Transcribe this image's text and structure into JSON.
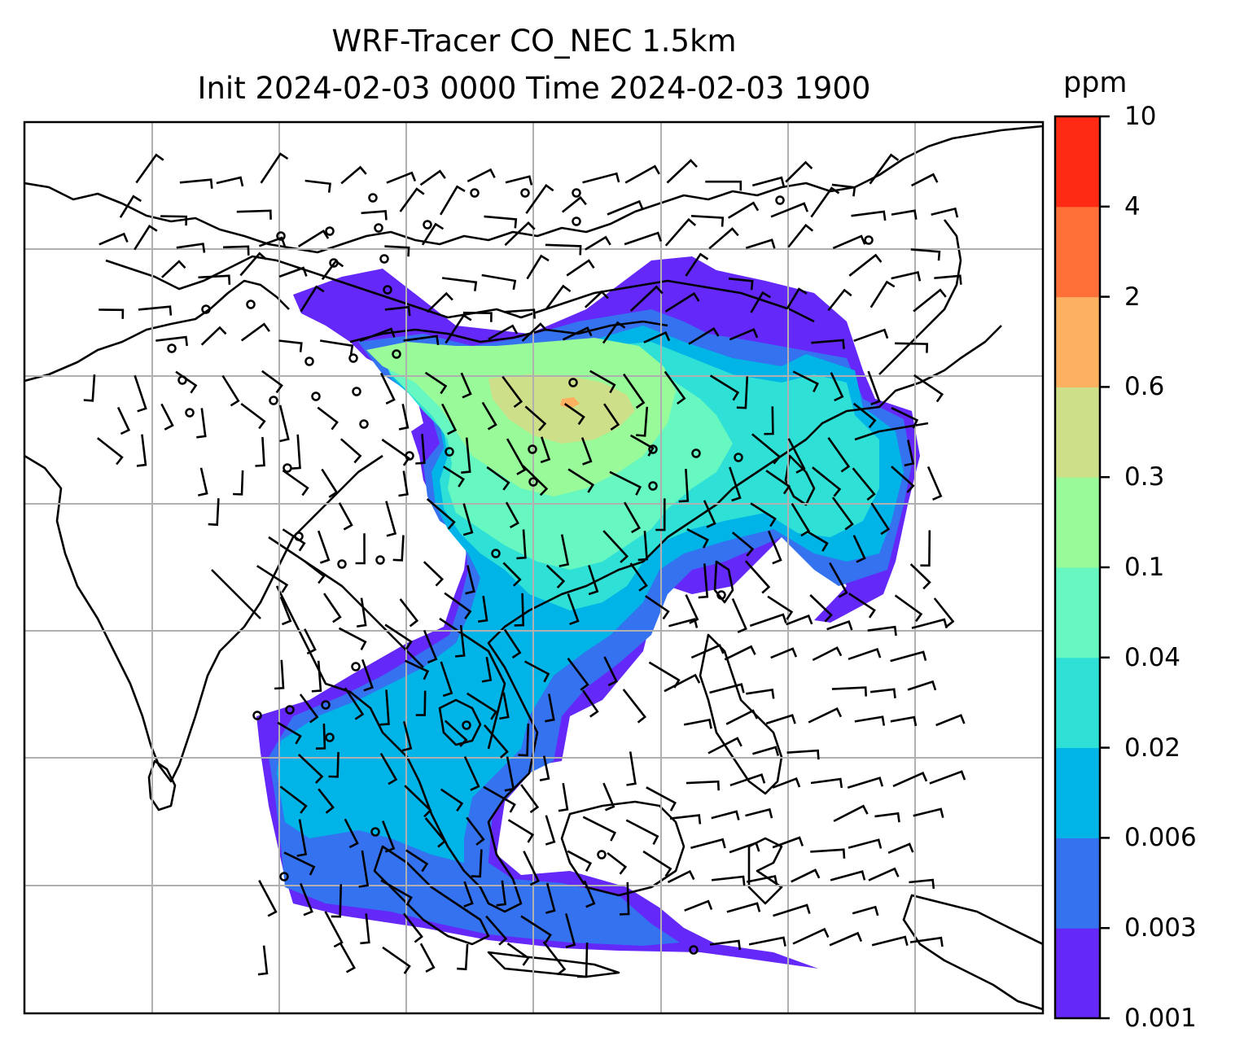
{
  "figure": {
    "title_line1": "WRF-Tracer CO_NEC 1.5km",
    "title_line2": "Init 2024-02-03 0000 Time 2024-02-03 1900"
  },
  "colorbar": {
    "unit": "ppm",
    "levels": [
      "0.001",
      "0.003",
      "0.006",
      "0.02",
      "0.04",
      "0.1",
      "0.3",
      "0.6",
      "2",
      "4",
      "10"
    ],
    "colors": [
      "#6428f8",
      "#3472f0",
      "#00b4e8",
      "#2ee0d6",
      "#66f8c0",
      "#98fa98",
      "#cde089",
      "#fcb060",
      "#fe7038",
      "#ff2a14"
    ]
  },
  "map": {
    "gridlines": true,
    "coastline_color": "#000000",
    "gridline_color": "#b0b0b0",
    "wind_barbs": true,
    "calm_circles": true
  }
}
